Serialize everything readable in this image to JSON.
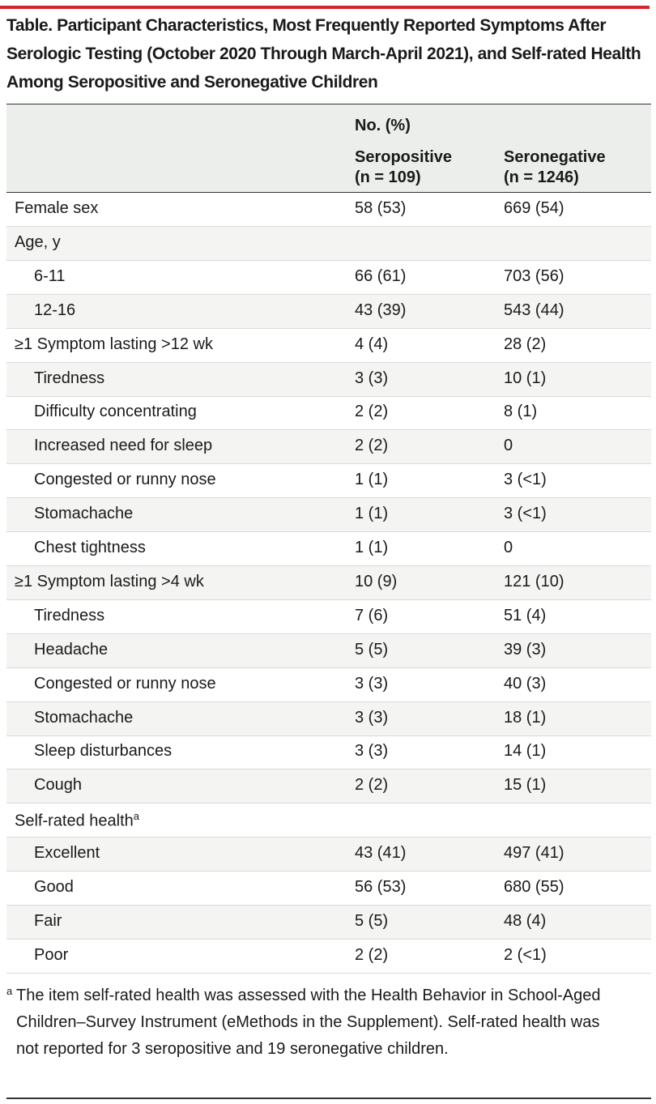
{
  "title": "Table. Participant Characteristics, Most Frequently Reported Symptoms After Serologic Testing (October 2020 Through March-April 2021), and Self-rated Health Among Seropositive and Seronegative Children",
  "table": {
    "header": {
      "span": "No. (%)",
      "columns": [
        [
          "Seropositive",
          "(n = 109)"
        ],
        [
          "Seronegative",
          "(n = 1246)"
        ]
      ]
    },
    "groups": [
      {
        "label": "Female sex",
        "values": [
          "58 (53)",
          "669 (54)"
        ]
      },
      {
        "label": "Age, y",
        "items": [
          {
            "label": "6-11",
            "values": [
              "66 (61)",
              "703 (56)"
            ]
          },
          {
            "label": "12-16",
            "values": [
              "43 (39)",
              "543 (44)"
            ]
          }
        ]
      },
      {
        "label": "≥1 Symptom lasting >12 wk",
        "values": [
          "4 (4)",
          "28 (2)"
        ],
        "items": [
          {
            "label": "Tiredness",
            "values": [
              "3 (3)",
              "10 (1)"
            ]
          },
          {
            "label": "Difficulty concentrating",
            "values": [
              "2 (2)",
              "8 (1)"
            ]
          },
          {
            "label": "Increased need for sleep",
            "values": [
              "2 (2)",
              "0"
            ]
          },
          {
            "label": "Congested or runny nose",
            "values": [
              "1 (1)",
              "3 (<1)"
            ]
          },
          {
            "label": "Stomachache",
            "values": [
              "1 (1)",
              "3 (<1)"
            ]
          },
          {
            "label": "Chest tightness",
            "values": [
              "1 (1)",
              "0"
            ]
          }
        ]
      },
      {
        "label": "≥1 Symptom lasting >4 wk",
        "values": [
          "10 (9)",
          "121 (10)"
        ],
        "items": [
          {
            "label": "Tiredness",
            "values": [
              "7 (6)",
              "51 (4)"
            ]
          },
          {
            "label": "Headache",
            "values": [
              "5 (5)",
              "39 (3)"
            ]
          },
          {
            "label": "Congested or runny nose",
            "values": [
              "3 (3)",
              "40 (3)"
            ]
          },
          {
            "label": "Stomachache",
            "values": [
              "3 (3)",
              "18 (1)"
            ]
          },
          {
            "label": "Sleep disturbances",
            "values": [
              "3 (3)",
              "14 (1)"
            ]
          },
          {
            "label": "Cough",
            "values": [
              "2 (2)",
              "15 (1)"
            ]
          }
        ]
      },
      {
        "label": "Self-rated health",
        "note": "a",
        "items": [
          {
            "label": "Excellent",
            "values": [
              "43 (41)",
              "497 (41)"
            ]
          },
          {
            "label": "Good",
            "values": [
              "56 (53)",
              "680 (55)"
            ]
          },
          {
            "label": "Fair",
            "values": [
              "5 (5)",
              "48 (4)"
            ]
          },
          {
            "label": "Poor",
            "values": [
              "2 (2)",
              "2 (<1)"
            ]
          }
        ]
      }
    ]
  },
  "footnote": {
    "marker": "a",
    "text": "The item self-rated health was assessed with the Health Behavior in School-Aged Children–Survey Instrument (eMethods in the Supplement). Self-rated health was not reported for 3 seropositive and 19 seronegative children."
  }
}
